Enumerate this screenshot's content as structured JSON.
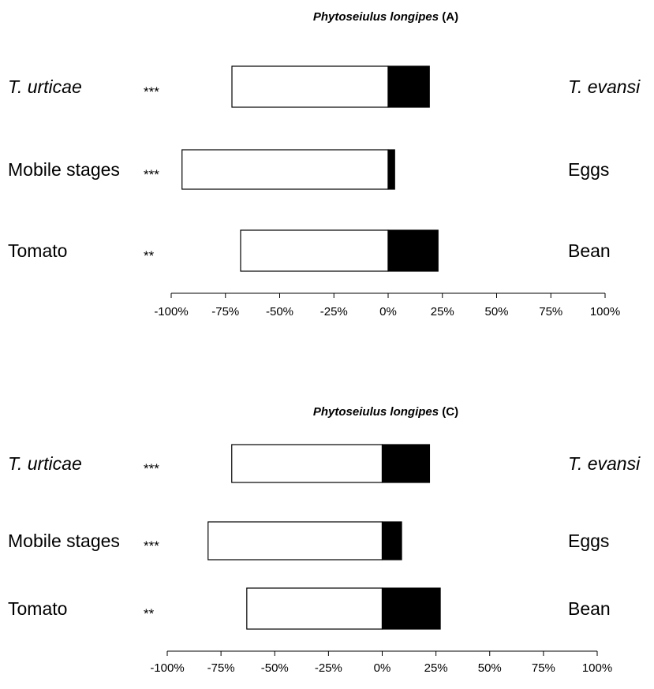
{
  "chart_data": [
    {
      "type": "bar",
      "title_species": "Phytoseiulus longipes",
      "title_suffix": " (A)",
      "x_ticks": [
        "-100%",
        "-75%",
        "-50%",
        "-25%",
        "0%",
        "25%",
        "50%",
        "75%",
        "100%"
      ],
      "xlim": [
        -100,
        100
      ],
      "rows": [
        {
          "left_label": "T. urticae",
          "left_italic": true,
          "right_label": "T. evansi",
          "right_italic": true,
          "sig": "***",
          "negative": -72,
          "positive": 19
        },
        {
          "left_label": "Mobile stages",
          "left_italic": false,
          "right_label": "Eggs",
          "right_italic": false,
          "sig": "***",
          "negative": -95,
          "positive": 3
        },
        {
          "left_label": "Tomato",
          "left_italic": false,
          "right_label": "Bean",
          "right_italic": false,
          "sig": "**",
          "negative": -68,
          "positive": 23
        }
      ]
    },
    {
      "type": "bar",
      "title_species": "Phytoseiulus longipes",
      "title_suffix": " (C)",
      "x_ticks": [
        "-100%",
        "-75%",
        "-50%",
        "-25%",
        "0%",
        "25%",
        "50%",
        "75%",
        "100%"
      ],
      "xlim": [
        -100,
        100
      ],
      "rows": [
        {
          "left_label": "T. urticae",
          "left_italic": true,
          "right_label": "T. evansi",
          "right_italic": true,
          "sig": "***",
          "negative": -70,
          "positive": 22
        },
        {
          "left_label": "Mobile stages",
          "left_italic": false,
          "right_label": "Eggs",
          "right_italic": false,
          "sig": "***",
          "negative": -81,
          "positive": 9
        },
        {
          "left_label": "Tomato",
          "left_italic": false,
          "right_label": "Bean",
          "right_italic": false,
          "sig": "**",
          "negative": -63,
          "positive": 27
        }
      ]
    }
  ]
}
